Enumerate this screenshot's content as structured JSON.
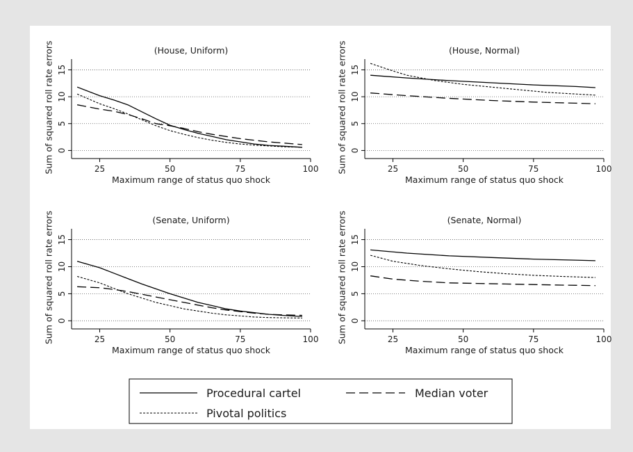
{
  "chart_data": [
    {
      "type": "line",
      "title": "(House, Uniform)",
      "xlabel": "Maximum range of status quo shock",
      "ylabel": "Sum of squared roll rate errors",
      "xlim": [
        15,
        100
      ],
      "ylim": [
        -1.5,
        17
      ],
      "xticks": [
        25,
        50,
        75,
        100
      ],
      "xtick_labels": [
        "25",
        "50",
        "75",
        "100"
      ],
      "yticks": [
        0,
        5,
        10,
        15
      ],
      "ytick_labels": [
        "0",
        "5",
        "10",
        "15"
      ],
      "grid": "horizontal-dotted",
      "series": [
        {
          "name": "Procedural cartel",
          "style": "solid",
          "x": [
            17,
            25,
            30,
            35,
            40,
            45,
            50,
            55,
            60,
            65,
            70,
            75,
            80,
            85,
            90,
            97
          ],
          "y": [
            11.8,
            10.2,
            9.4,
            8.5,
            7.2,
            5.9,
            4.7,
            3.9,
            3.2,
            2.6,
            2.0,
            1.6,
            1.2,
            0.95,
            0.8,
            0.6
          ]
        },
        {
          "name": "Median voter",
          "style": "dashed",
          "x": [
            17,
            25,
            30,
            35,
            40,
            45,
            50,
            55,
            60,
            65,
            70,
            75,
            80,
            85,
            90,
            97
          ],
          "y": [
            8.5,
            7.7,
            7.3,
            6.7,
            5.9,
            5.0,
            4.6,
            4.1,
            3.5,
            3.0,
            2.6,
            2.2,
            1.9,
            1.6,
            1.4,
            1.1
          ]
        },
        {
          "name": "Pivotal politics",
          "style": "dotted",
          "x": [
            17,
            25,
            30,
            35,
            40,
            45,
            50,
            55,
            60,
            65,
            70,
            75,
            80,
            85,
            90,
            97
          ],
          "y": [
            10.5,
            8.7,
            7.8,
            6.8,
            5.7,
            4.6,
            3.7,
            3.0,
            2.4,
            1.9,
            1.5,
            1.2,
            1.0,
            0.85,
            0.7,
            0.6
          ]
        }
      ]
    },
    {
      "type": "line",
      "title": "(House, Normal)",
      "xlabel": "Maximum range of status quo shock",
      "ylabel": "Sum of squared roll rate errors",
      "xlim": [
        15,
        100
      ],
      "ylim": [
        -1.5,
        17
      ],
      "xticks": [
        25,
        50,
        75,
        100
      ],
      "xtick_labels": [
        "25",
        "50",
        "75",
        "100"
      ],
      "yticks": [
        0,
        5,
        10,
        15
      ],
      "ytick_labels": [
        "0",
        "5",
        "10",
        "15"
      ],
      "grid": "horizontal-dotted",
      "series": [
        {
          "name": "Procedural cartel",
          "style": "solid",
          "x": [
            17,
            30,
            45,
            60,
            75,
            90,
            97
          ],
          "y": [
            14.0,
            13.5,
            13.0,
            12.6,
            12.2,
            11.9,
            11.7
          ]
        },
        {
          "name": "Median voter",
          "style": "dashed",
          "x": [
            17,
            30,
            45,
            60,
            75,
            90,
            97
          ],
          "y": [
            10.7,
            10.2,
            9.7,
            9.3,
            9.0,
            8.8,
            8.7
          ]
        },
        {
          "name": "Pivotal politics",
          "style": "dotted",
          "x": [
            17,
            25,
            30,
            40,
            50,
            60,
            70,
            80,
            90,
            97
          ],
          "y": [
            16.2,
            14.8,
            14.0,
            13.0,
            12.3,
            11.8,
            11.3,
            10.8,
            10.5,
            10.3
          ]
        }
      ]
    },
    {
      "type": "line",
      "title": "(Senate, Uniform)",
      "xlabel": "Maximum range of status quo shock",
      "ylabel": "Sum of squared roll rate errors",
      "xlim": [
        15,
        100
      ],
      "ylim": [
        -1.5,
        17
      ],
      "xticks": [
        25,
        50,
        75,
        100
      ],
      "xtick_labels": [
        "25",
        "50",
        "75",
        "100"
      ],
      "yticks": [
        0,
        5,
        10,
        15
      ],
      "ytick_labels": [
        "0",
        "5",
        "10",
        "15"
      ],
      "grid": "horizontal-dotted",
      "series": [
        {
          "name": "Procedural cartel",
          "style": "solid",
          "x": [
            17,
            25,
            30,
            35,
            40,
            45,
            50,
            55,
            60,
            65,
            70,
            75,
            80,
            85,
            90,
            97
          ],
          "y": [
            11.0,
            9.8,
            8.8,
            7.8,
            6.8,
            5.9,
            5.0,
            4.2,
            3.4,
            2.8,
            2.2,
            1.8,
            1.5,
            1.2,
            1.0,
            0.8
          ]
        },
        {
          "name": "Median voter",
          "style": "dashed",
          "x": [
            17,
            25,
            30,
            35,
            40,
            45,
            50,
            55,
            60,
            65,
            70,
            75,
            80,
            85,
            90,
            97
          ],
          "y": [
            6.3,
            6.1,
            5.8,
            5.4,
            4.9,
            4.4,
            3.9,
            3.4,
            2.9,
            2.4,
            2.0,
            1.7,
            1.4,
            1.2,
            1.1,
            1.0
          ]
        },
        {
          "name": "Pivotal politics",
          "style": "dotted",
          "x": [
            17,
            25,
            30,
            35,
            40,
            45,
            50,
            55,
            60,
            65,
            70,
            75,
            80,
            85,
            90,
            97
          ],
          "y": [
            8.2,
            7.0,
            6.0,
            5.0,
            4.2,
            3.4,
            2.8,
            2.2,
            1.8,
            1.4,
            1.1,
            0.9,
            0.7,
            0.6,
            0.55,
            0.5
          ]
        }
      ]
    },
    {
      "type": "line",
      "title": "(Senate, Normal)",
      "xlabel": "Maximum range of status quo shock",
      "ylabel": "Sum of squared roll rate errors",
      "xlim": [
        15,
        100
      ],
      "ylim": [
        -1.5,
        17
      ],
      "xticks": [
        25,
        50,
        75,
        100
      ],
      "xtick_labels": [
        "25",
        "50",
        "75",
        "100"
      ],
      "yticks": [
        0,
        5,
        10,
        15
      ],
      "ytick_labels": [
        "0",
        "5",
        "10",
        "15"
      ],
      "grid": "horizontal-dotted",
      "series": [
        {
          "name": "Procedural cartel",
          "style": "solid",
          "x": [
            17,
            30,
            45,
            60,
            75,
            90,
            97
          ],
          "y": [
            13.1,
            12.5,
            12.0,
            11.7,
            11.4,
            11.2,
            11.1
          ]
        },
        {
          "name": "Median voter",
          "style": "dashed",
          "x": [
            17,
            25,
            35,
            45,
            55,
            65,
            75,
            85,
            97
          ],
          "y": [
            8.3,
            7.7,
            7.3,
            7.0,
            6.9,
            6.8,
            6.7,
            6.6,
            6.5
          ]
        },
        {
          "name": "Pivotal politics",
          "style": "dotted",
          "x": [
            17,
            25,
            35,
            45,
            55,
            65,
            75,
            85,
            97
          ],
          "y": [
            12.1,
            11.0,
            10.2,
            9.6,
            9.1,
            8.7,
            8.4,
            8.2,
            8.0
          ]
        }
      ]
    }
  ],
  "legend": {
    "items": [
      {
        "label": "Procedural cartel",
        "style": "solid"
      },
      {
        "label": "Median voter",
        "style": "dashed"
      },
      {
        "label": "Pivotal politics",
        "style": "dotted"
      }
    ]
  },
  "colors": {
    "background": "#e5e5e5",
    "plot_area": "#ffffff",
    "line": "#000000",
    "grid": "#555555"
  }
}
